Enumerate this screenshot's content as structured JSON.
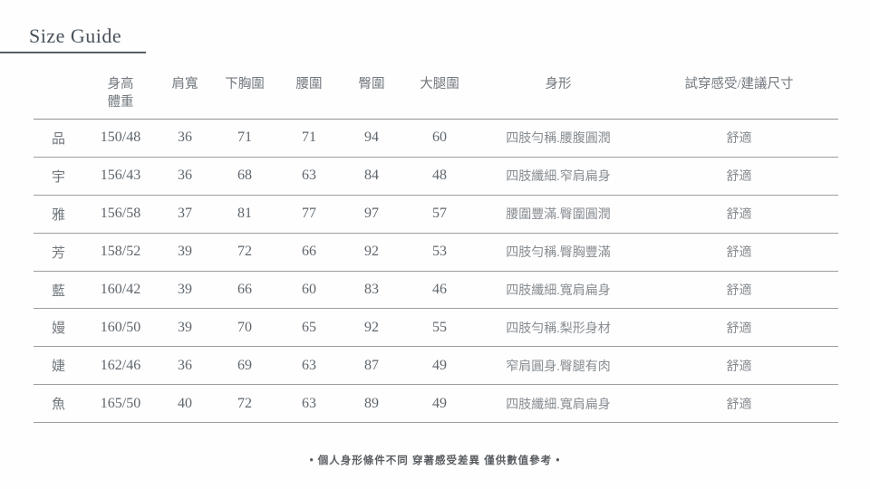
{
  "page": {
    "title": "Size Guide",
    "footer_note": "• 個人身形條件不同 穿著感受差異 僅供數值參考 •"
  },
  "size_table": {
    "columns": [
      "",
      "身高\n體重",
      "肩寬",
      "下胸圍",
      "腰圍",
      "臀圍",
      "大腿圍",
      "身形",
      "試穿感受/建議尺寸"
    ],
    "rows": [
      [
        "品",
        "150/48",
        "36",
        "71",
        "71",
        "94",
        "60",
        "四肢勻稱.腰腹圓潤",
        "舒適"
      ],
      [
        "宇",
        "156/43",
        "36",
        "68",
        "63",
        "84",
        "48",
        "四肢纖細.窄肩扁身",
        "舒適"
      ],
      [
        "雅",
        "156/58",
        "37",
        "81",
        "77",
        "97",
        "57",
        "腰圍豐滿.臀圍圓潤",
        "舒適"
      ],
      [
        "芳",
        "158/52",
        "39",
        "72",
        "66",
        "92",
        "53",
        "四肢勻稱.臀胸豐滿",
        "舒適"
      ],
      [
        "藍",
        "160/42",
        "39",
        "66",
        "60",
        "83",
        "46",
        "四肢纖細.寬肩扁身",
        "舒適"
      ],
      [
        "嫚",
        "160/50",
        "39",
        "70",
        "65",
        "92",
        "55",
        "四肢勻稱.梨形身材",
        "舒適"
      ],
      [
        "婕",
        "162/46",
        "36",
        "69",
        "63",
        "87",
        "49",
        "窄肩圓身.臀腿有肉",
        "舒適"
      ],
      [
        "魚",
        "165/50",
        "40",
        "72",
        "63",
        "89",
        "49",
        "四肢纖細.寬肩扁身",
        "舒適"
      ]
    ]
  },
  "colors": {
    "title": "#49525a",
    "header_text": "#72787e",
    "number_text": "#5f666d",
    "shape_text": "#878c91",
    "rule_line": "#9a9fa3",
    "background": "#fefefe"
  }
}
